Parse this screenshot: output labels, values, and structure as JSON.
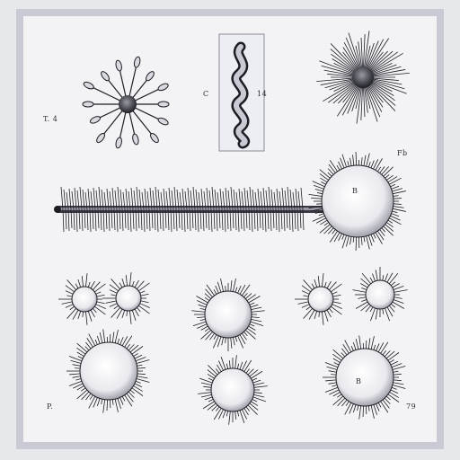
{
  "plate": {
    "labels": {
      "top_left": "T. 4",
      "top_middle_left": "C",
      "top_middle_right": "14",
      "right_middle": "Fb",
      "large_cell": "B",
      "lower_left": "P.",
      "lower_right": "79",
      "lower_right_cell": "B"
    }
  },
  "colors": {
    "ink": "#1d1d24",
    "paper": "#f3f3f6",
    "frame": "#c9cad4",
    "shade": "#8a8b96"
  }
}
